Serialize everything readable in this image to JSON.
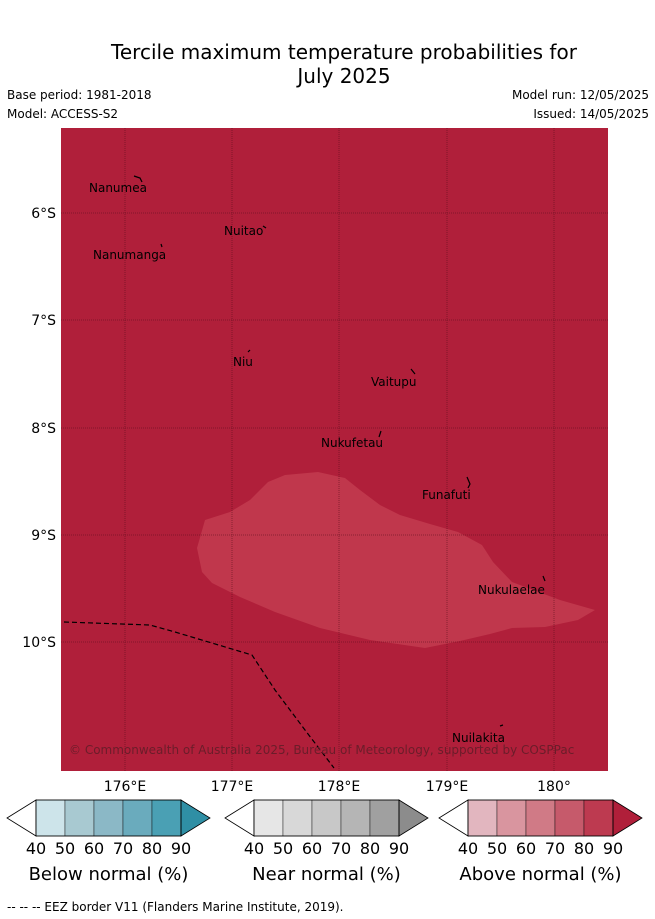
{
  "title_line1": "Tercile maximum temperature probabilities for",
  "title_line2": "July 2025",
  "base_period": "Base period: 1981-2018",
  "model": "Model: ACCESS-S2",
  "model_run": "Model run: 12/05/2025",
  "issued": "Issued: 14/05/2025",
  "map": {
    "background_color": "#b01f3a",
    "patch_color": "#c0374c",
    "lat_ticks": [
      "6°S",
      "7°S",
      "8°S",
      "9°S",
      "10°S"
    ],
    "lon_ticks": [
      "176°E",
      "177°E",
      "178°E",
      "179°E",
      "180°"
    ],
    "islands": [
      "Nanumea",
      "Nuitao",
      "Nanumanga",
      "Niu",
      "Vaitupu",
      "Nukufetau",
      "Funafuti",
      "Nukulaelae",
      "Nuilakita"
    ],
    "credit": "© Commonwealth of Australia 2025, Bureau of Meteorology, supported by COSPPac"
  },
  "colorbars": [
    {
      "title": "Below normal (%)",
      "ticks": [
        "40",
        "50",
        "60",
        "70",
        "80",
        "90"
      ],
      "colors": [
        "#ffffff",
        "#cde4ea",
        "#a8c9d1",
        "#8bb8c6",
        "#6aabbd",
        "#4aa0b4",
        "#2f8fa5"
      ]
    },
    {
      "title": "Near normal (%)",
      "ticks": [
        "40",
        "50",
        "60",
        "70",
        "80",
        "90"
      ],
      "colors": [
        "#ffffff",
        "#e6e6e6",
        "#d8d8d8",
        "#c8c8c8",
        "#b5b5b5",
        "#a0a0a0",
        "#8c8c8c"
      ]
    },
    {
      "title": "Above normal (%)",
      "ticks": [
        "40",
        "50",
        "60",
        "70",
        "80",
        "90"
      ],
      "colors": [
        "#ffffff",
        "#e2b6bf",
        "#d9959f",
        "#d07a86",
        "#c65a6b",
        "#bd3a50",
        "#b01f3a"
      ]
    }
  ],
  "footer": "--  --  -- EEZ border V11 (Flanders Marine Institute, 2019)."
}
